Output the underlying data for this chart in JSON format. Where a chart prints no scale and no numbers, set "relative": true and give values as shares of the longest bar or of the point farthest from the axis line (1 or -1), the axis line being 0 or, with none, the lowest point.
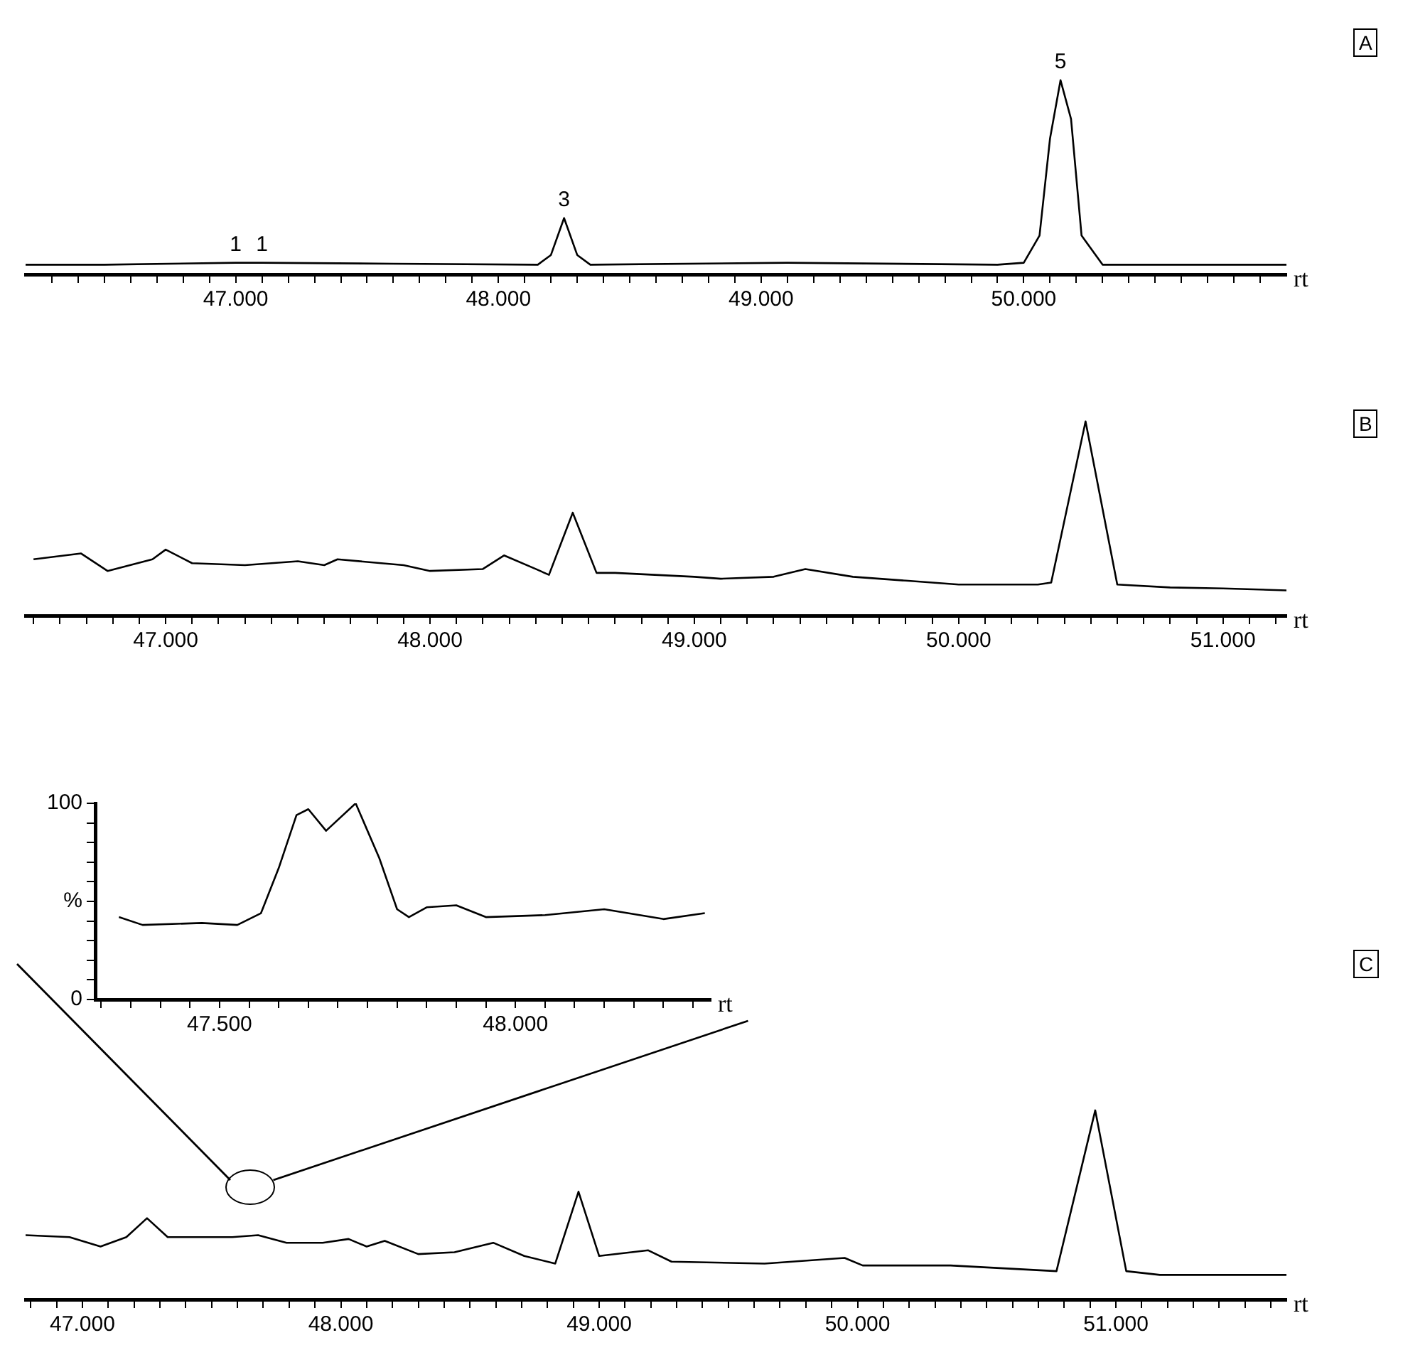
{
  "chart_data": [
    {
      "type": "line",
      "relative": true,
      "xlabel": "rt",
      "color": "#000000",
      "marker": "none",
      "line_style": "solid",
      "grid": false,
      "legend": false,
      "x": [
        46200,
        46500,
        47000,
        47100,
        47600,
        48150,
        48200,
        48250,
        48300,
        48350,
        49100,
        49900,
        50000,
        50060,
        50100,
        50140,
        50180,
        50220,
        50300,
        51000
      ],
      "values": [
        0.05,
        0.05,
        0.06,
        0.06,
        0.055,
        0.05,
        0.1,
        0.29,
        0.1,
        0.05,
        0.06,
        0.05,
        0.06,
        0.2,
        0.7,
        1,
        0.8,
        0.2,
        0.05,
        0.05
      ],
      "xlim": [
        46200,
        51000
      ],
      "xticks": [
        {
          "value": 46300,
          "label": null
        },
        {
          "value": 46400,
          "label": null
        },
        {
          "value": 46500,
          "label": null
        },
        {
          "value": 46600,
          "label": null
        },
        {
          "value": 46700,
          "label": null
        },
        {
          "value": 46800,
          "label": null
        },
        {
          "value": 46900,
          "label": null
        },
        {
          "value": 47000,
          "label": "47.000"
        },
        {
          "value": 47100,
          "label": null
        },
        {
          "value": 47200,
          "label": null
        },
        {
          "value": 47300,
          "label": null
        },
        {
          "value": 47400,
          "label": null
        },
        {
          "value": 47500,
          "label": null
        },
        {
          "value": 47600,
          "label": null
        },
        {
          "value": 47700,
          "label": null
        },
        {
          "value": 47800,
          "label": null
        },
        {
          "value": 47900,
          "label": null
        },
        {
          "value": 48000,
          "label": "48.000"
        },
        {
          "value": 48100,
          "label": null
        },
        {
          "value": 48200,
          "label": null
        },
        {
          "value": 48300,
          "label": null
        },
        {
          "value": 48400,
          "label": null
        },
        {
          "value": 48500,
          "label": null
        },
        {
          "value": 48600,
          "label": null
        },
        {
          "value": 48700,
          "label": null
        },
        {
          "value": 48800,
          "label": null
        },
        {
          "value": 48900,
          "label": null
        },
        {
          "value": 49000,
          "label": "49.000"
        },
        {
          "value": 49100,
          "label": null
        },
        {
          "value": 49200,
          "label": null
        },
        {
          "value": 49300,
          "label": null
        },
        {
          "value": 49400,
          "label": null
        },
        {
          "value": 49500,
          "label": null
        },
        {
          "value": 49600,
          "label": null
        },
        {
          "value": 49700,
          "label": null
        },
        {
          "value": 49800,
          "label": null
        },
        {
          "value": 49900,
          "label": null
        },
        {
          "value": 50000,
          "label": "50.000"
        },
        {
          "value": 50100,
          "label": null
        },
        {
          "value": 50200,
          "label": null
        },
        {
          "value": 50300,
          "label": null
        },
        {
          "value": 50400,
          "label": null
        },
        {
          "value": 50500,
          "label": null
        },
        {
          "value": 50600,
          "label": null
        },
        {
          "value": 50700,
          "label": null
        },
        {
          "value": 50800,
          "label": null
        },
        {
          "value": 50900,
          "label": null
        }
      ],
      "annotations": [
        "A",
        {
          "text": "1",
          "x": 47000,
          "y": 0.06
        },
        {
          "text": "1",
          "x": 47100,
          "y": 0.06
        },
        {
          "text": "3",
          "x": 48250,
          "y": 0.29
        },
        {
          "text": "5",
          "x": 50140,
          "y": 1
        }
      ]
    },
    {
      "type": "line",
      "relative": true,
      "xlabel": "rt",
      "color": "#000000",
      "marker": "none",
      "line_style": "solid",
      "grid": false,
      "legend": false,
      "x": [
        46500,
        46680,
        46780,
        46950,
        47000,
        47100,
        47300,
        47500,
        47600,
        47650,
        47900,
        48000,
        48200,
        48280,
        48400,
        48450,
        48540,
        48630,
        48700,
        49000,
        49100,
        49300,
        49420,
        49600,
        49800,
        50000,
        50300,
        50350,
        50480,
        50600,
        50800,
        51000,
        51240
      ],
      "values": [
        0.29,
        0.32,
        0.23,
        0.29,
        0.34,
        0.27,
        0.26,
        0.28,
        0.26,
        0.29,
        0.26,
        0.23,
        0.24,
        0.31,
        0.24,
        0.21,
        0.53,
        0.22,
        0.22,
        0.2,
        0.19,
        0.2,
        0.24,
        0.2,
        0.18,
        0.16,
        0.16,
        0.17,
        1,
        0.16,
        0.145,
        0.14,
        0.13
      ],
      "xlim": [
        46470,
        51240
      ],
      "xticks": [
        {
          "value": 46500,
          "label": null
        },
        {
          "value": 46600,
          "label": null
        },
        {
          "value": 46700,
          "label": null
        },
        {
          "value": 46800,
          "label": null
        },
        {
          "value": 46900,
          "label": null
        },
        {
          "value": 47000,
          "label": "47.000"
        },
        {
          "value": 47100,
          "label": null
        },
        {
          "value": 47200,
          "label": null
        },
        {
          "value": 47300,
          "label": null
        },
        {
          "value": 47400,
          "label": null
        },
        {
          "value": 47500,
          "label": null
        },
        {
          "value": 47600,
          "label": null
        },
        {
          "value": 47700,
          "label": null
        },
        {
          "value": 47800,
          "label": null
        },
        {
          "value": 47900,
          "label": null
        },
        {
          "value": 48000,
          "label": "48.000"
        },
        {
          "value": 48100,
          "label": null
        },
        {
          "value": 48200,
          "label": null
        },
        {
          "value": 48300,
          "label": null
        },
        {
          "value": 48400,
          "label": null
        },
        {
          "value": 48500,
          "label": null
        },
        {
          "value": 48600,
          "label": null
        },
        {
          "value": 48700,
          "label": null
        },
        {
          "value": 48800,
          "label": null
        },
        {
          "value": 48900,
          "label": null
        },
        {
          "value": 49000,
          "label": "49.000"
        },
        {
          "value": 49100,
          "label": null
        },
        {
          "value": 49200,
          "label": null
        },
        {
          "value": 49300,
          "label": null
        },
        {
          "value": 49400,
          "label": null
        },
        {
          "value": 49500,
          "label": null
        },
        {
          "value": 49600,
          "label": null
        },
        {
          "value": 49700,
          "label": null
        },
        {
          "value": 49800,
          "label": null
        },
        {
          "value": 49900,
          "label": null
        },
        {
          "value": 50000,
          "label": "50.000"
        },
        {
          "value": 50100,
          "label": null
        },
        {
          "value": 50200,
          "label": null
        },
        {
          "value": 50300,
          "label": null
        },
        {
          "value": 50400,
          "label": null
        },
        {
          "value": 50500,
          "label": null
        },
        {
          "value": 50600,
          "label": null
        },
        {
          "value": 50700,
          "label": null
        },
        {
          "value": 50800,
          "label": null
        },
        {
          "value": 50900,
          "label": null
        },
        {
          "value": 51000,
          "label": "51.000"
        },
        {
          "value": 51100,
          "label": null
        },
        {
          "value": 51200,
          "label": null
        }
      ],
      "annotations": [
        "B"
      ]
    },
    {
      "type": "line",
      "xlabel": "rt",
      "color": "#000000",
      "marker": "none",
      "line_style": "solid",
      "grid": false,
      "legend": false,
      "x": [
        47330,
        47370,
        47470,
        47530,
        47570,
        47600,
        47630,
        47650,
        47680,
        47730,
        47770,
        47800,
        47820,
        47850,
        47900,
        47950,
        48050,
        48150,
        48250,
        48320
      ],
      "values": [
        42,
        38,
        39,
        38,
        44,
        67,
        94,
        97,
        86,
        100,
        72,
        46,
        42,
        47,
        48,
        42,
        43,
        46,
        41,
        44
      ],
      "xlim": [
        47290,
        48330
      ],
      "xticks": [
        {
          "value": 47300,
          "label": null
        },
        {
          "value": 47350,
          "label": null
        },
        {
          "value": 47400,
          "label": null
        },
        {
          "value": 47450,
          "label": null
        },
        {
          "value": 47500,
          "label": "47.500"
        },
        {
          "value": 47550,
          "label": null
        },
        {
          "value": 47600,
          "label": null
        },
        {
          "value": 47650,
          "label": null
        },
        {
          "value": 47700,
          "label": null
        },
        {
          "value": 47750,
          "label": null
        },
        {
          "value": 47800,
          "label": null
        },
        {
          "value": 47850,
          "label": null
        },
        {
          "value": 47900,
          "label": null
        },
        {
          "value": 47950,
          "label": null
        },
        {
          "value": 48000,
          "label": "48.000"
        },
        {
          "value": 48050,
          "label": null
        },
        {
          "value": 48100,
          "label": null
        },
        {
          "value": 48150,
          "label": null
        },
        {
          "value": 48200,
          "label": null
        },
        {
          "value": 48250,
          "label": null
        },
        {
          "value": 48300,
          "label": null
        }
      ],
      "ylim": [
        0,
        100
      ],
      "yticks": [
        0,
        {
          "value": 10,
          "label": null
        },
        {
          "value": 20,
          "label": null
        },
        {
          "value": 30,
          "label": null
        },
        {
          "value": 40,
          "label": null
        },
        {
          "value": 50,
          "label": "%"
        },
        {
          "value": 60,
          "label": null
        },
        {
          "value": 70,
          "label": null
        },
        {
          "value": 80,
          "label": null
        },
        {
          "value": 90,
          "label": null
        },
        100
      ]
    },
    {
      "type": "line",
      "relative": true,
      "xlabel": "rt",
      "color": "#000000",
      "marker": "none",
      "line_style": "solid",
      "grid": false,
      "legend": false,
      "x": [
        46780,
        46950,
        47070,
        47170,
        47250,
        47330,
        47410,
        47580,
        47680,
        47790,
        47930,
        48030,
        48100,
        48170,
        48300,
        48440,
        48590,
        48710,
        48830,
        48920,
        49000,
        49190,
        49280,
        49640,
        49950,
        50020,
        50360,
        50770,
        50920,
        51040,
        51170,
        51660
      ],
      "values": [
        0.34,
        0.33,
        0.28,
        0.33,
        0.43,
        0.33,
        0.33,
        0.33,
        0.34,
        0.3,
        0.3,
        0.32,
        0.28,
        0.31,
        0.24,
        0.25,
        0.3,
        0.23,
        0.19,
        0.57,
        0.23,
        0.26,
        0.2,
        0.19,
        0.22,
        0.18,
        0.18,
        0.15,
        1,
        0.15,
        0.13,
        0.13
      ],
      "xlim": [
        46780,
        51660
      ],
      "xticks": [
        {
          "value": 46800,
          "label": null
        },
        {
          "value": 46900,
          "label": null
        },
        {
          "value": 47000,
          "label": "47.000"
        },
        {
          "value": 47100,
          "label": null
        },
        {
          "value": 47200,
          "label": null
        },
        {
          "value": 47300,
          "label": null
        },
        {
          "value": 47400,
          "label": null
        },
        {
          "value": 47500,
          "label": null
        },
        {
          "value": 47600,
          "label": null
        },
        {
          "value": 47700,
          "label": null
        },
        {
          "value": 47800,
          "label": null
        },
        {
          "value": 47900,
          "label": null
        },
        {
          "value": 48000,
          "label": "48.000"
        },
        {
          "value": 48100,
          "label": null
        },
        {
          "value": 48200,
          "label": null
        },
        {
          "value": 48300,
          "label": null
        },
        {
          "value": 48400,
          "label": null
        },
        {
          "value": 48500,
          "label": null
        },
        {
          "value": 48600,
          "label": null
        },
        {
          "value": 48700,
          "label": null
        },
        {
          "value": 48800,
          "label": null
        },
        {
          "value": 48900,
          "label": null
        },
        {
          "value": 49000,
          "label": "49.000"
        },
        {
          "value": 49100,
          "label": null
        },
        {
          "value": 49200,
          "label": null
        },
        {
          "value": 49300,
          "label": null
        },
        {
          "value": 49400,
          "label": null
        },
        {
          "value": 49500,
          "label": null
        },
        {
          "value": 49600,
          "label": null
        },
        {
          "value": 49700,
          "label": null
        },
        {
          "value": 49800,
          "label": null
        },
        {
          "value": 49900,
          "label": null
        },
        {
          "value": 50000,
          "label": "50.000"
        },
        {
          "value": 50100,
          "label": null
        },
        {
          "value": 50200,
          "label": null
        },
        {
          "value": 50300,
          "label": null
        },
        {
          "value": 50400,
          "label": null
        },
        {
          "value": 50500,
          "label": null
        },
        {
          "value": 50600,
          "label": null
        },
        {
          "value": 50700,
          "label": null
        },
        {
          "value": 50800,
          "label": null
        },
        {
          "value": 50900,
          "label": null
        },
        {
          "value": 51000,
          "label": "51.000"
        },
        {
          "value": 51100,
          "label": null
        },
        {
          "value": 51200,
          "label": null
        },
        {
          "value": 51300,
          "label": null
        },
        {
          "value": 51400,
          "label": null
        },
        {
          "value": 51500,
          "label": null
        },
        {
          "value": 51600,
          "label": null
        }
      ],
      "annotations": [
        "C"
      ]
    }
  ]
}
